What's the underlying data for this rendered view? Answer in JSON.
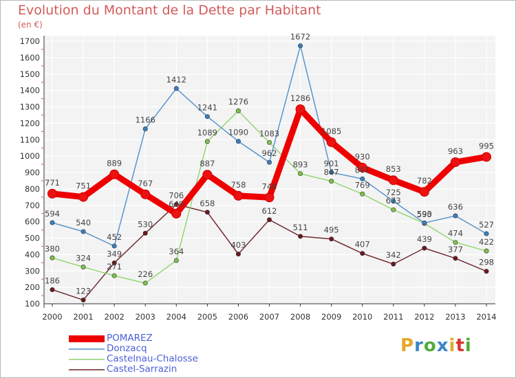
{
  "title": "Evolution du Montant de la Dette par Habitant",
  "subtitle": "(en €)",
  "logo": {
    "letters": [
      "P",
      "r",
      "o",
      "x",
      "i",
      "t",
      "i"
    ],
    "colors": [
      "#e6a62b",
      "#3a86c8",
      "#4fae3a",
      "#3a86c8",
      "#e6a62b",
      "#d8322a",
      "#4fae3a"
    ]
  },
  "chart_data": {
    "type": "line",
    "x": [
      "2000",
      "2001",
      "2002",
      "2003",
      "2004",
      "2005",
      "2006",
      "2007",
      "2008",
      "2009",
      "2010",
      "2011",
      "2012",
      "2013",
      "2014"
    ],
    "ylim": [
      100,
      1700
    ],
    "yticks": [
      "100",
      "200",
      "300",
      "400",
      "500",
      "600",
      "700",
      "800",
      "900",
      "1000",
      "1100",
      "1200",
      "1300",
      "1400",
      "1500",
      "1600",
      "1700"
    ],
    "grid": true,
    "legend_position": "bottom-left",
    "series": [
      {
        "name": "POMAREZ",
        "color": "#ee0000",
        "marker": "#ee1111",
        "values": [
          771,
          751,
          889,
          767,
          649,
          887,
          758,
          748,
          1286,
          1085,
          930,
          853,
          782,
          963,
          995
        ],
        "labels": [
          "771",
          "751",
          "889",
          "767",
          "",
          "887",
          "758",
          "748",
          "1286",
          "1085",
          "930",
          "853",
          "782",
          "963",
          "995"
        ]
      },
      {
        "name": "Donzacq",
        "color": "#4f8fc9",
        "marker": "#3b7fc0",
        "values": [
          594,
          540,
          452,
          1166,
          1412,
          1241,
          1090,
          962,
          1672,
          901,
          861,
          725,
          593,
          636,
          527
        ],
        "labels": [
          "594",
          "540",
          "452",
          "1166",
          "1412",
          "1241",
          "1090",
          "962",
          "1672",
          "901",
          "861",
          "725",
          "593",
          "636",
          "527"
        ]
      },
      {
        "name": "Castelnau-Chalosse",
        "color": "#8fd46a",
        "marker": "#7cc24b",
        "values": [
          380,
          324,
          271,
          226,
          364,
          1089,
          1276,
          1083,
          893,
          847,
          769,
          673,
          590,
          474,
          422
        ],
        "labels": [
          "380",
          "324",
          "271",
          "226",
          "364",
          "1089",
          "1276",
          "1083",
          "893",
          "847",
          "769",
          "673",
          "590",
          "474",
          "422"
        ]
      },
      {
        "name": "Castel-Sarrazin",
        "color": "#6b1f24",
        "marker": "#6b1a1f",
        "values": [
          186,
          123,
          349,
          530,
          706,
          658,
          403,
          612,
          511,
          495,
          407,
          342,
          439,
          377,
          298
        ],
        "labels": [
          "186",
          "123",
          "349",
          "530",
          "706",
          "658",
          "403",
          "612",
          "511",
          "495",
          "407",
          "342",
          "439",
          "377",
          "298"
        ]
      }
    ],
    "extra_labels": [
      "649"
    ]
  }
}
